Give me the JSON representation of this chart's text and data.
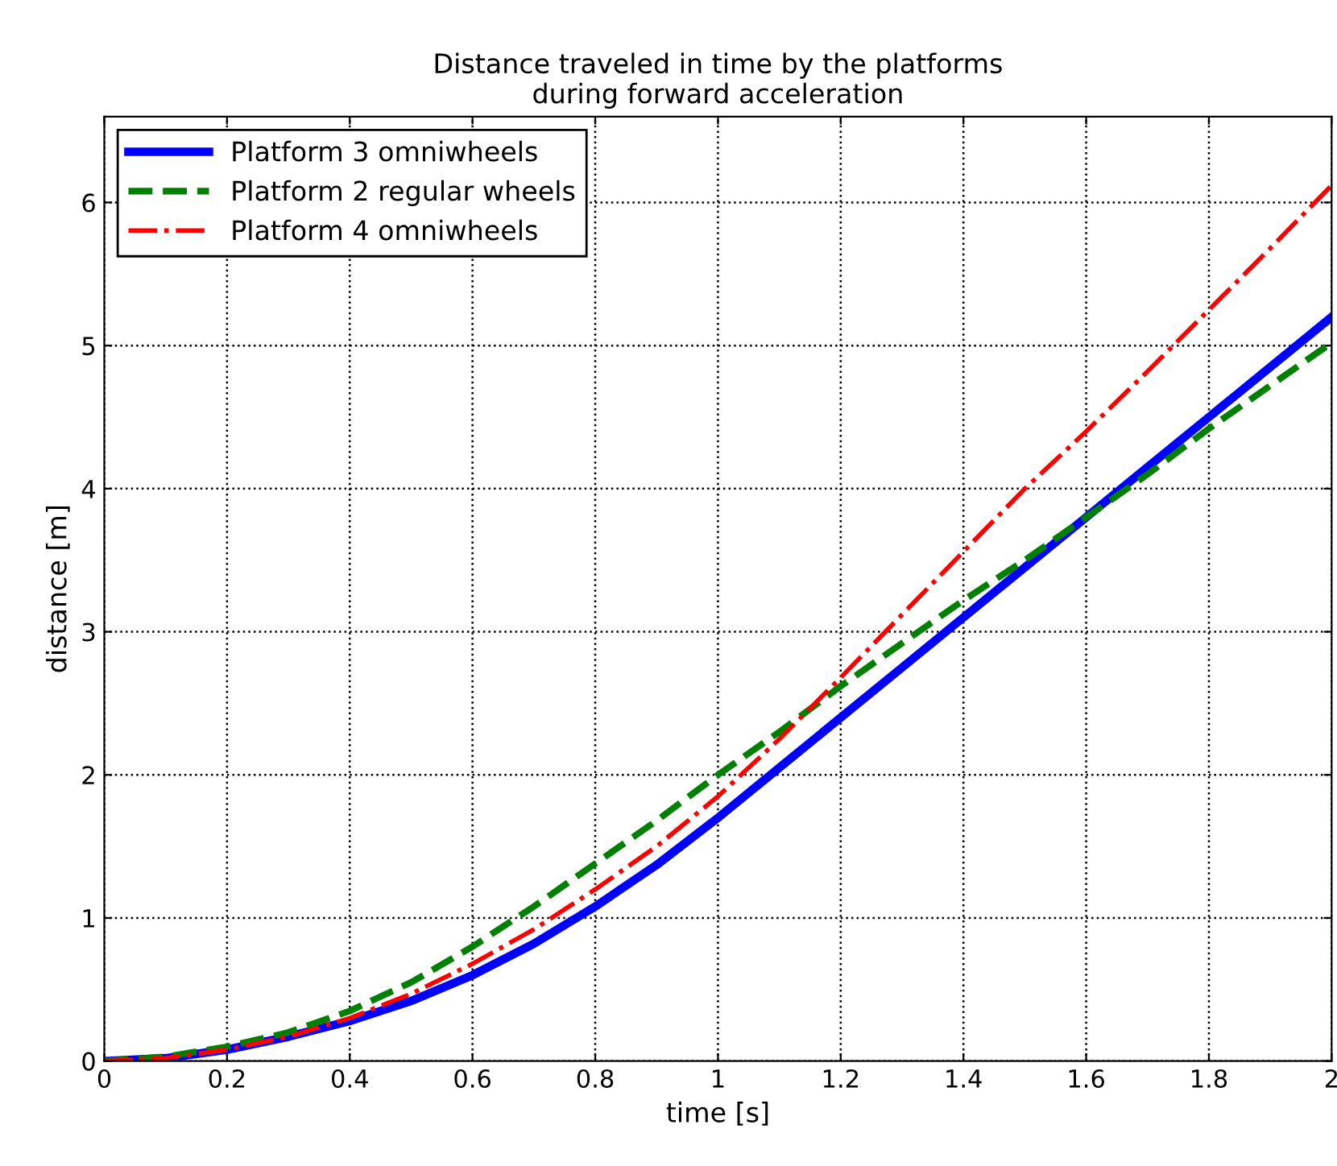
{
  "chart_data": {
    "type": "line",
    "title": "Distance traveled in time by the platforms\nduring forward acceleration",
    "xlabel": "time [s]",
    "ylabel": "distance [m]",
    "x": [
      0,
      0.1,
      0.2,
      0.3,
      0.4,
      0.5,
      0.6,
      0.7,
      0.8,
      0.9,
      1.0,
      1.1,
      1.2,
      1.3,
      1.4,
      1.5,
      1.6,
      1.7,
      1.8,
      1.9,
      2.0
    ],
    "series": [
      {
        "name": "Platform 3 omniwheels",
        "color": "#0000ff",
        "line_style": "solid",
        "values": [
          0,
          0.02,
          0.08,
          0.17,
          0.28,
          0.42,
          0.6,
          0.82,
          1.08,
          1.37,
          1.7,
          2.05,
          2.4,
          2.75,
          3.1,
          3.45,
          3.8,
          4.15,
          4.5,
          4.85,
          5.2
        ]
      },
      {
        "name": "Platform 2 regular wheels",
        "color": "#008000",
        "line_style": "dashed",
        "values": [
          0,
          0.03,
          0.1,
          0.2,
          0.35,
          0.55,
          0.8,
          1.08,
          1.38,
          1.68,
          2.0,
          2.3,
          2.62,
          2.92,
          3.22,
          3.5,
          3.8,
          4.1,
          4.42,
          4.72,
          5.02
        ]
      },
      {
        "name": "Platform 4 omniwheels",
        "color": "#ff0000",
        "line_style": "dashdot",
        "values": [
          0,
          0.02,
          0.08,
          0.17,
          0.3,
          0.47,
          0.68,
          0.92,
          1.2,
          1.5,
          1.85,
          2.25,
          2.68,
          3.12,
          3.56,
          4.0,
          4.4,
          4.82,
          5.25,
          5.68,
          6.12
        ]
      }
    ],
    "xlim": [
      0,
      2
    ],
    "xticks": [
      0,
      0.2,
      0.4,
      0.6,
      0.8,
      1,
      1.2,
      1.4,
      1.6,
      1.8,
      2
    ],
    "ylim": [
      0,
      6.6
    ],
    "yticks": [
      0,
      1,
      2,
      3,
      4,
      5,
      6
    ],
    "grid": true,
    "legend": "top left"
  }
}
